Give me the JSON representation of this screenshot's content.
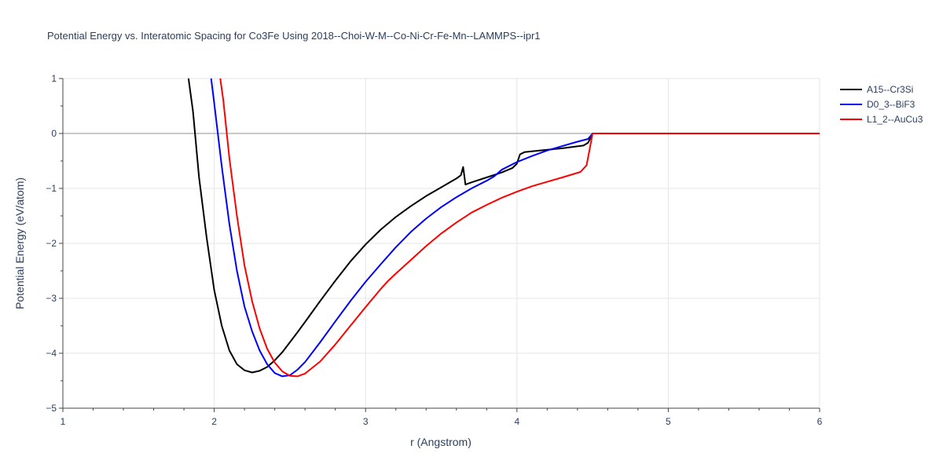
{
  "chart_data": {
    "type": "line",
    "title": "Potential Energy vs. Interatomic Spacing for Co3Fe Using 2018--Choi-W-M--Co-Ni-Cr-Fe-Mn--LAMMPS--ipr1",
    "xlabel": "r (Angstrom)",
    "ylabel": "Potential Energy (eV/atom)",
    "xlim": [
      1,
      6
    ],
    "ylim": [
      -5,
      1
    ],
    "x_ticks": [
      "1",
      "2",
      "3",
      "4",
      "5",
      "6"
    ],
    "y_ticks": [
      "1",
      "0",
      "−1",
      "−2",
      "−3",
      "−4",
      "−5"
    ],
    "grid": true,
    "legend_position": "top-right",
    "series": [
      {
        "name": "A15--Cr3Si",
        "color": "#000000",
        "points": [
          [
            1.83,
            1.0
          ],
          [
            1.86,
            0.4
          ],
          [
            1.9,
            -0.8
          ],
          [
            1.95,
            -1.9
          ],
          [
            2.0,
            -2.85
          ],
          [
            2.05,
            -3.5
          ],
          [
            2.1,
            -3.95
          ],
          [
            2.15,
            -4.2
          ],
          [
            2.2,
            -4.31
          ],
          [
            2.25,
            -4.35
          ],
          [
            2.3,
            -4.32
          ],
          [
            2.35,
            -4.25
          ],
          [
            2.4,
            -4.13
          ],
          [
            2.45,
            -3.98
          ],
          [
            2.5,
            -3.8
          ],
          [
            2.55,
            -3.62
          ],
          [
            2.6,
            -3.43
          ],
          [
            2.7,
            -3.05
          ],
          [
            2.8,
            -2.68
          ],
          [
            2.9,
            -2.33
          ],
          [
            3.0,
            -2.02
          ],
          [
            3.1,
            -1.75
          ],
          [
            3.2,
            -1.52
          ],
          [
            3.3,
            -1.32
          ],
          [
            3.4,
            -1.14
          ],
          [
            3.5,
            -0.98
          ],
          [
            3.55,
            -0.9
          ],
          [
            3.6,
            -0.82
          ],
          [
            3.63,
            -0.76
          ],
          [
            3.645,
            -0.61
          ],
          [
            3.66,
            -0.93
          ],
          [
            3.7,
            -0.89
          ],
          [
            3.8,
            -0.8
          ],
          [
            3.9,
            -0.71
          ],
          [
            3.97,
            -0.63
          ],
          [
            4.0,
            -0.55
          ],
          [
            4.02,
            -0.38
          ],
          [
            4.05,
            -0.34
          ],
          [
            4.15,
            -0.31
          ],
          [
            4.3,
            -0.27
          ],
          [
            4.44,
            -0.22
          ],
          [
            4.47,
            -0.17
          ],
          [
            4.5,
            0.0
          ],
          [
            6.0,
            0.0
          ]
        ]
      },
      {
        "name": "D0_3--BiF3",
        "color": "#0000ff",
        "points": [
          [
            1.98,
            1.0
          ],
          [
            2.0,
            0.55
          ],
          [
            2.05,
            -0.6
          ],
          [
            2.1,
            -1.65
          ],
          [
            2.15,
            -2.5
          ],
          [
            2.2,
            -3.15
          ],
          [
            2.25,
            -3.6
          ],
          [
            2.3,
            -3.95
          ],
          [
            2.35,
            -4.2
          ],
          [
            2.4,
            -4.36
          ],
          [
            2.45,
            -4.42
          ],
          [
            2.5,
            -4.4
          ],
          [
            2.55,
            -4.3
          ],
          [
            2.6,
            -4.16
          ],
          [
            2.7,
            -3.8
          ],
          [
            2.8,
            -3.42
          ],
          [
            2.9,
            -3.05
          ],
          [
            3.0,
            -2.7
          ],
          [
            3.1,
            -2.38
          ],
          [
            3.2,
            -2.07
          ],
          [
            3.3,
            -1.79
          ],
          [
            3.4,
            -1.55
          ],
          [
            3.5,
            -1.34
          ],
          [
            3.6,
            -1.16
          ],
          [
            3.7,
            -1.0
          ],
          [
            3.8,
            -0.86
          ],
          [
            3.85,
            -0.78
          ],
          [
            3.9,
            -0.66
          ],
          [
            4.0,
            -0.52
          ],
          [
            4.1,
            -0.41
          ],
          [
            4.2,
            -0.31
          ],
          [
            4.3,
            -0.23
          ],
          [
            4.4,
            -0.15
          ],
          [
            4.47,
            -0.1
          ],
          [
            4.5,
            0.0
          ],
          [
            6.0,
            0.0
          ]
        ]
      },
      {
        "name": "L1_2--AuCu3",
        "color": "#ff0000",
        "points": [
          [
            2.04,
            1.0
          ],
          [
            2.06,
            0.6
          ],
          [
            2.1,
            -0.45
          ],
          [
            2.15,
            -1.5
          ],
          [
            2.2,
            -2.4
          ],
          [
            2.25,
            -3.05
          ],
          [
            2.3,
            -3.55
          ],
          [
            2.35,
            -3.92
          ],
          [
            2.4,
            -4.17
          ],
          [
            2.45,
            -4.33
          ],
          [
            2.5,
            -4.41
          ],
          [
            2.55,
            -4.42
          ],
          [
            2.6,
            -4.37
          ],
          [
            2.7,
            -4.15
          ],
          [
            2.8,
            -3.84
          ],
          [
            2.9,
            -3.5
          ],
          [
            3.0,
            -3.16
          ],
          [
            3.1,
            -2.83
          ],
          [
            3.15,
            -2.68
          ],
          [
            3.2,
            -2.55
          ],
          [
            3.3,
            -2.3
          ],
          [
            3.4,
            -2.05
          ],
          [
            3.5,
            -1.82
          ],
          [
            3.6,
            -1.62
          ],
          [
            3.7,
            -1.44
          ],
          [
            3.8,
            -1.3
          ],
          [
            3.9,
            -1.17
          ],
          [
            4.0,
            -1.06
          ],
          [
            4.1,
            -0.96
          ],
          [
            4.2,
            -0.88
          ],
          [
            4.3,
            -0.8
          ],
          [
            4.42,
            -0.7
          ],
          [
            4.46,
            -0.58
          ],
          [
            4.48,
            -0.3
          ],
          [
            4.5,
            0.0
          ],
          [
            6.0,
            0.0
          ]
        ]
      }
    ]
  }
}
